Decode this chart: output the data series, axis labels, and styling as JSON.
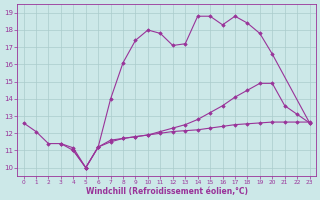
{
  "xlabel": "Windchill (Refroidissement éolien,°C)",
  "xlim_min": -0.5,
  "xlim_max": 23.5,
  "ylim_min": 9.5,
  "ylim_max": 19.5,
  "xticks": [
    0,
    1,
    2,
    3,
    4,
    5,
    6,
    7,
    8,
    9,
    10,
    11,
    12,
    13,
    14,
    15,
    16,
    17,
    18,
    19,
    20,
    21,
    22,
    23
  ],
  "yticks": [
    10,
    11,
    12,
    13,
    14,
    15,
    16,
    17,
    18,
    19
  ],
  "bg_color": "#cce8e8",
  "line_color": "#993399",
  "grid_color": "#aacccc",
  "lines": [
    {
      "x": [
        0,
        1,
        2,
        3,
        4,
        5,
        6,
        7,
        8,
        9,
        10,
        11,
        12,
        13,
        14,
        15,
        16,
        17,
        18,
        19,
        20,
        23
      ],
      "y": [
        12.6,
        12.1,
        11.4,
        11.4,
        11.15,
        10.0,
        11.2,
        14.0,
        16.1,
        17.4,
        18.0,
        17.8,
        17.1,
        17.2,
        18.8,
        18.8,
        18.3,
        18.8,
        18.4,
        17.8,
        16.6,
        12.6
      ]
    },
    {
      "x": [
        3,
        4,
        5,
        6,
        7,
        8,
        9,
        10,
        11,
        12,
        13,
        14,
        15,
        16,
        17,
        18,
        19,
        20,
        21,
        22,
        23
      ],
      "y": [
        11.4,
        11.0,
        10.0,
        11.2,
        11.6,
        11.7,
        11.8,
        11.9,
        12.1,
        12.3,
        12.5,
        12.8,
        13.2,
        13.6,
        14.1,
        14.5,
        14.9,
        14.9,
        13.6,
        13.1,
        12.6
      ]
    },
    {
      "x": [
        4,
        5,
        6,
        7,
        8,
        9,
        10,
        11,
        12,
        13,
        14,
        15,
        16,
        17,
        18,
        19,
        20,
        21,
        22,
        23
      ],
      "y": [
        11.0,
        10.0,
        11.2,
        11.5,
        11.7,
        11.8,
        11.9,
        12.0,
        12.1,
        12.15,
        12.2,
        12.3,
        12.4,
        12.5,
        12.55,
        12.6,
        12.65,
        12.65,
        12.65,
        12.65
      ]
    }
  ]
}
